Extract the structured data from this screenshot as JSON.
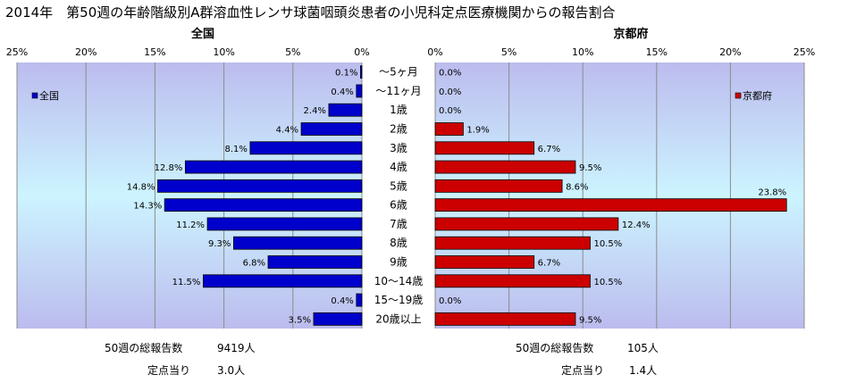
{
  "page": {
    "title": "2014年　第50週の年齢階級別A群溶血性レンサ球菌咽頭炎患者の小児科定点医療機関からの報告割合"
  },
  "chart_data": {
    "type": "bar",
    "categories": [
      "～5ヶ月",
      "～11ヶ月",
      "1歳",
      "2歳",
      "3歳",
      "4歳",
      "5歳",
      "6歳",
      "7歳",
      "8歳",
      "9歳",
      "10～14歳",
      "15～19歳",
      "20歳以上"
    ],
    "xlim": [
      0,
      25
    ],
    "x_ticks": [
      "0%",
      "5%",
      "10%",
      "15%",
      "20%",
      "25%"
    ],
    "series": [
      {
        "name": "全国",
        "panel_title": "全国",
        "legend": "全国",
        "color": "#0000cc",
        "values": [
          0.1,
          0.4,
          2.4,
          4.4,
          8.1,
          12.8,
          14.8,
          14.3,
          11.2,
          9.3,
          6.8,
          11.5,
          0.4,
          3.5
        ],
        "labels": [
          "0.1%",
          "0.4%",
          "2.4%",
          "4.4%",
          "8.1%",
          "12.8%",
          "14.8%",
          "14.3%",
          "11.2%",
          "9.3%",
          "6.8%",
          "11.5%",
          "0.4%",
          "3.5%"
        ]
      },
      {
        "name": "京都府",
        "panel_title": "京都府",
        "legend": "京都府",
        "color": "#cc0000",
        "values": [
          0.0,
          0.0,
          0.0,
          1.9,
          6.7,
          9.5,
          8.6,
          23.8,
          12.4,
          10.5,
          6.7,
          10.5,
          0.0,
          9.5
        ],
        "labels": [
          "0.0%",
          "0.0%",
          "0.0%",
          "1.9%",
          "6.7%",
          "9.5%",
          "8.6%",
          "23.8%",
          "12.4%",
          "10.5%",
          "6.7%",
          "10.5%",
          "0.0%",
          "9.5%"
        ]
      }
    ],
    "grid": true,
    "legend_position": "top-left (national), top-right (Kyoto)"
  },
  "footer": {
    "national": {
      "total_label": "50週の総報告数",
      "total_value": "9419人",
      "per_label": "定点当り",
      "per_value": "3.0人"
    },
    "kyoto": {
      "total_label": "50週の総報告数",
      "total_value": "105人",
      "per_label": "定点当り",
      "per_value": "1.4人"
    }
  }
}
